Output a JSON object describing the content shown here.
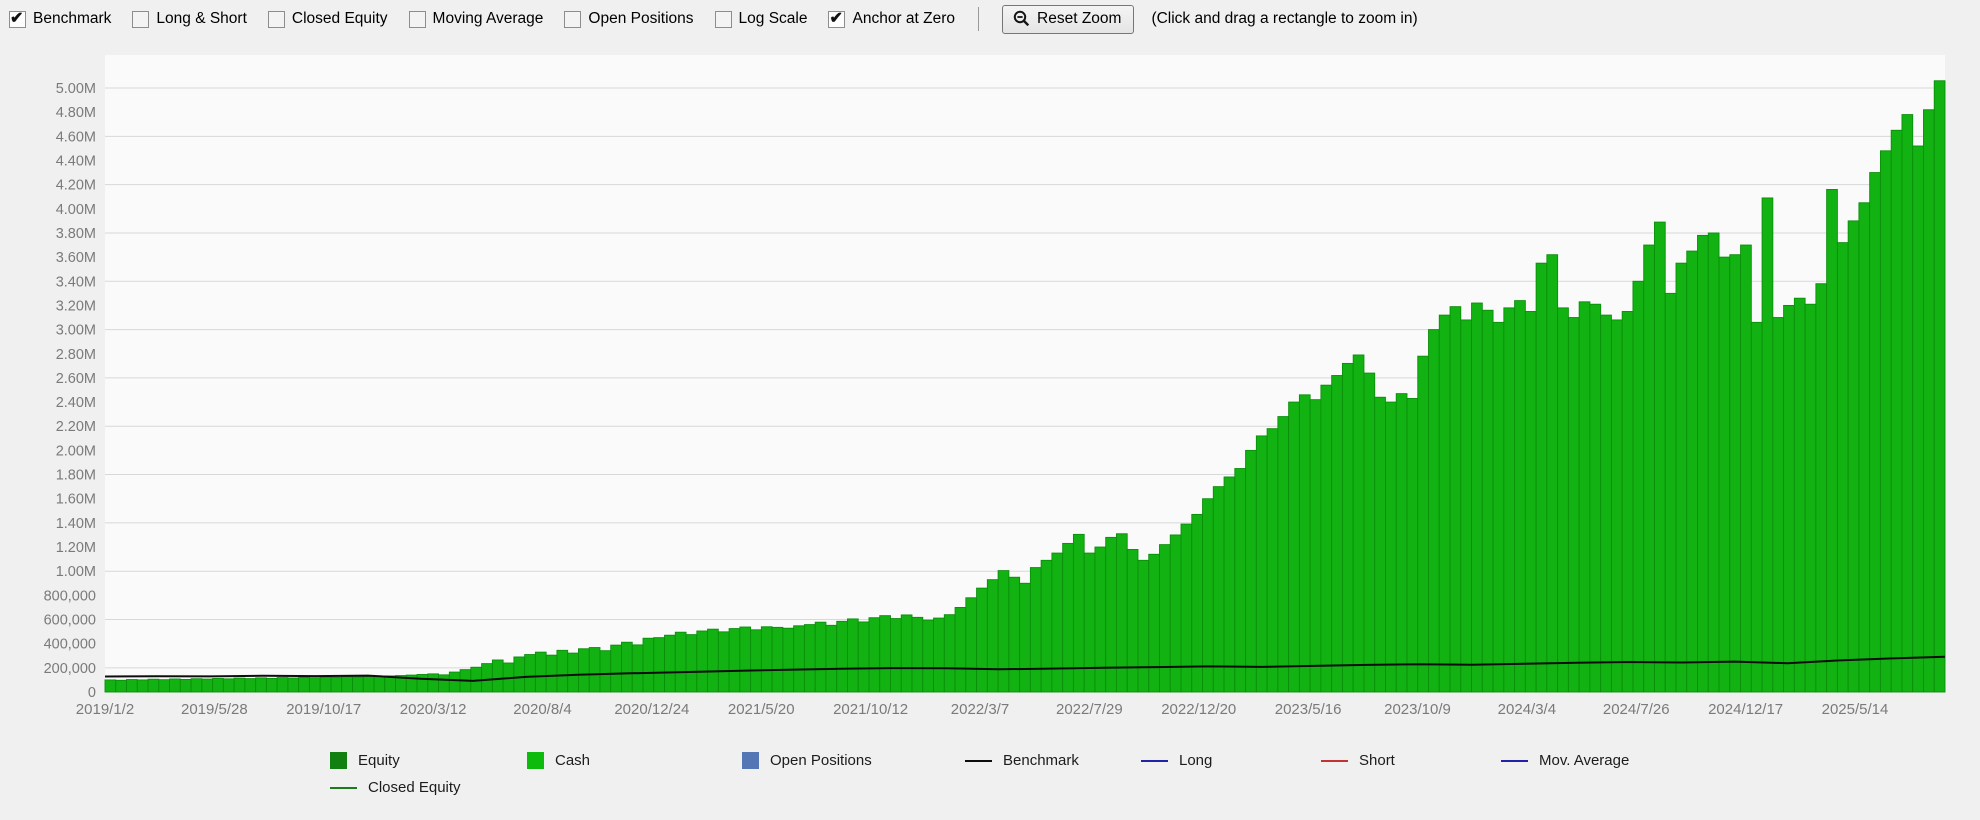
{
  "toolbar": {
    "checkboxes": [
      {
        "label": "Benchmark",
        "checked": true
      },
      {
        "label": "Long & Short",
        "checked": false
      },
      {
        "label": "Closed Equity",
        "checked": false
      },
      {
        "label": "Moving Average",
        "checked": false
      },
      {
        "label": "Open Positions",
        "checked": false
      },
      {
        "label": "Log Scale",
        "checked": false
      },
      {
        "label": "Anchor at Zero",
        "checked": true
      }
    ],
    "reset_zoom_label": "Reset Zoom",
    "hint": "(Click and drag a rectangle to zoom in)"
  },
  "legend": {
    "items": [
      {
        "label": "Equity",
        "type": "swatch",
        "color": "#118011"
      },
      {
        "label": "Cash",
        "type": "swatch",
        "color": "#0cbb0c"
      },
      {
        "label": "Open Positions",
        "type": "swatch",
        "color": "#5476b4"
      },
      {
        "label": "Benchmark",
        "type": "line",
        "color": "#0d0d0d"
      },
      {
        "label": "Long",
        "type": "line",
        "color": "#2222a8"
      },
      {
        "label": "Short",
        "type": "line",
        "color": "#c23434"
      },
      {
        "label": "Mov. Average",
        "type": "line",
        "color": "#2222a8"
      },
      {
        "label": "Closed Equity",
        "type": "line",
        "color": "#1d7a1d"
      }
    ]
  },
  "chart_data": {
    "type": "area",
    "title": "",
    "xlabel": "",
    "ylabel": "",
    "ylim": [
      0,
      5200000
    ],
    "grid": "horizontal",
    "anchor_at_zero": true,
    "legend_position": "bottom",
    "x_tick_labels": [
      "2019/1/2",
      "2019/5/28",
      "2019/10/17",
      "2020/3/12",
      "2020/8/4",
      "2020/12/24",
      "2021/5/20",
      "2021/10/12",
      "2022/3/7",
      "2022/7/29",
      "2022/12/20",
      "2023/5/16",
      "2023/10/9",
      "2024/3/4",
      "2024/7/26",
      "2024/12/17",
      "2025/5/14"
    ],
    "y_tick_labels": [
      "5.00M",
      "4.80M",
      "4.60M",
      "4.40M",
      "4.20M",
      "4.00M",
      "3.80M",
      "3.60M",
      "3.40M",
      "3.20M",
      "3.00M",
      "2.80M",
      "2.60M",
      "2.40M",
      "2.20M",
      "2.00M",
      "1.80M",
      "1.60M",
      "1.40M",
      "1.20M",
      "1.00M",
      "800,000",
      "600,000",
      "400,000",
      "200,000",
      "0"
    ],
    "y_tick_step": 200000,
    "y_max": 5000000,
    "series": [
      {
        "name": "Cash (equity curve area, $ thousands)",
        "style": "bars",
        "color": "#12b212",
        "edge": "#0a8f0a",
        "values_k": [
          100,
          97,
          103,
          100,
          106,
          102,
          108,
          104,
          110,
          107,
          112,
          109,
          115,
          111,
          117,
          113,
          119,
          116,
          122,
          118,
          124,
          121,
          127,
          124,
          130,
          127,
          133,
          136,
          140,
          145,
          150,
          142,
          165,
          185,
          205,
          235,
          265,
          240,
          290,
          310,
          330,
          305,
          345,
          322,
          358,
          368,
          342,
          388,
          412,
          390,
          445,
          450,
          470,
          495,
          475,
          505,
          520,
          498,
          525,
          538,
          515,
          540,
          535,
          528,
          548,
          558,
          578,
          552,
          585,
          605,
          580,
          615,
          632,
          608,
          638,
          618,
          595,
          612,
          640,
          700,
          780,
          860,
          930,
          1005,
          950,
          900,
          1030,
          1090,
          1150,
          1230,
          1305,
          1150,
          1200,
          1280,
          1310,
          1180,
          1090,
          1140,
          1220,
          1300,
          1390,
          1470,
          1600,
          1700,
          1780,
          1850,
          2000,
          2120,
          2180,
          2280,
          2400,
          2460,
          2420,
          2540,
          2620,
          2720,
          2790,
          2640,
          2440,
          2400,
          2470,
          2430,
          2780,
          3000,
          3120,
          3190,
          3080,
          3220,
          3160,
          3060,
          3180,
          3240,
          3150,
          3550,
          3620,
          3180,
          3100,
          3230,
          3210,
          3120,
          3080,
          3150,
          3400,
          3700,
          3890,
          3300,
          3550,
          3650,
          3780,
          3800,
          3600,
          3620,
          3700,
          3060,
          4090,
          3100,
          3200,
          3260,
          3210,
          3380,
          4160,
          3720,
          3900,
          4050,
          4300,
          4480,
          4650,
          4780,
          4520,
          4820,
          5060
        ]
      },
      {
        "name": "Benchmark ($ thousands)",
        "style": "line",
        "color": "#0d0d0d",
        "values_k": [
          128,
          131,
          129,
          134,
          132,
          136,
          110,
          92,
          125,
          142,
          155,
          165,
          175,
          185,
          192,
          198,
          196,
          188,
          194,
          200,
          206,
          212,
          208,
          216,
          224,
          230,
          226,
          234,
          242,
          248,
          244,
          252,
          238,
          262,
          278,
          292
        ]
      }
    ],
    "colors": {
      "plot_bg": "#fafafa",
      "grid": "#d8d8d8",
      "axis_text": "#7a7a7a",
      "page_bg": "#f0f0f0"
    }
  }
}
